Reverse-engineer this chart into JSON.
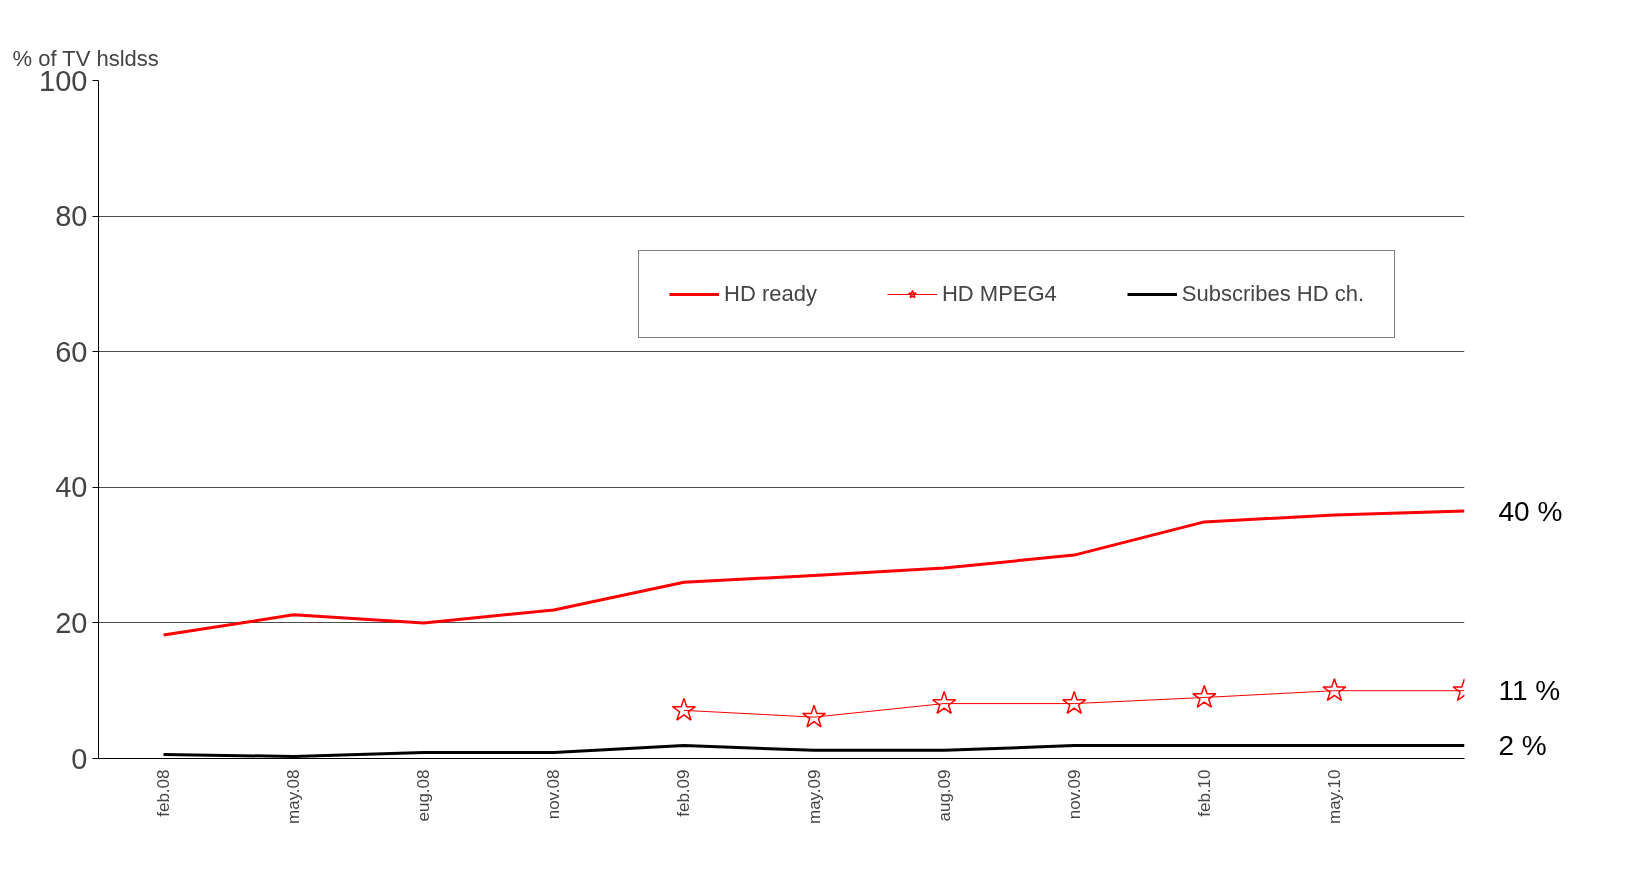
{
  "chart_data": {
    "type": "line",
    "ylabel": "% of TV hsldss",
    "categories": [
      "feb.08",
      "may.08",
      "eug.08",
      "nov.08",
      "feb.09",
      "may.09",
      "aug.09",
      "nov.09",
      "feb.10",
      "may.10",
      null
    ],
    "series": [
      {
        "name": "HD ready",
        "color": "#ff0000",
        "values": [
          18.2,
          21.2,
          20,
          21.9,
          26,
          27,
          28.1,
          30,
          34.9,
          35.9,
          36.5
        ],
        "marker": "none"
      },
      {
        "name": "HD MPEG4",
        "color": "#ff0000",
        "values": [
          null,
          null,
          null,
          null,
          7.1,
          6.1,
          8.1,
          8.1,
          9,
          10,
          10
        ],
        "marker": "star"
      },
      {
        "name": "Subscribes HD ch.",
        "color": "#000000",
        "values": [
          0.6,
          0.3,
          0.9,
          0.9,
          1.9,
          1.2,
          1.2,
          1.9,
          1.9,
          1.9,
          1.9
        ],
        "marker": "none"
      }
    ],
    "ylim": [
      0,
      100
    ],
    "yticks": [
      0,
      20,
      40,
      60,
      80,
      100
    ],
    "grid": "y",
    "legend": "top right",
    "annotations": [
      "40 %",
      "11 %",
      "2 %"
    ]
  }
}
